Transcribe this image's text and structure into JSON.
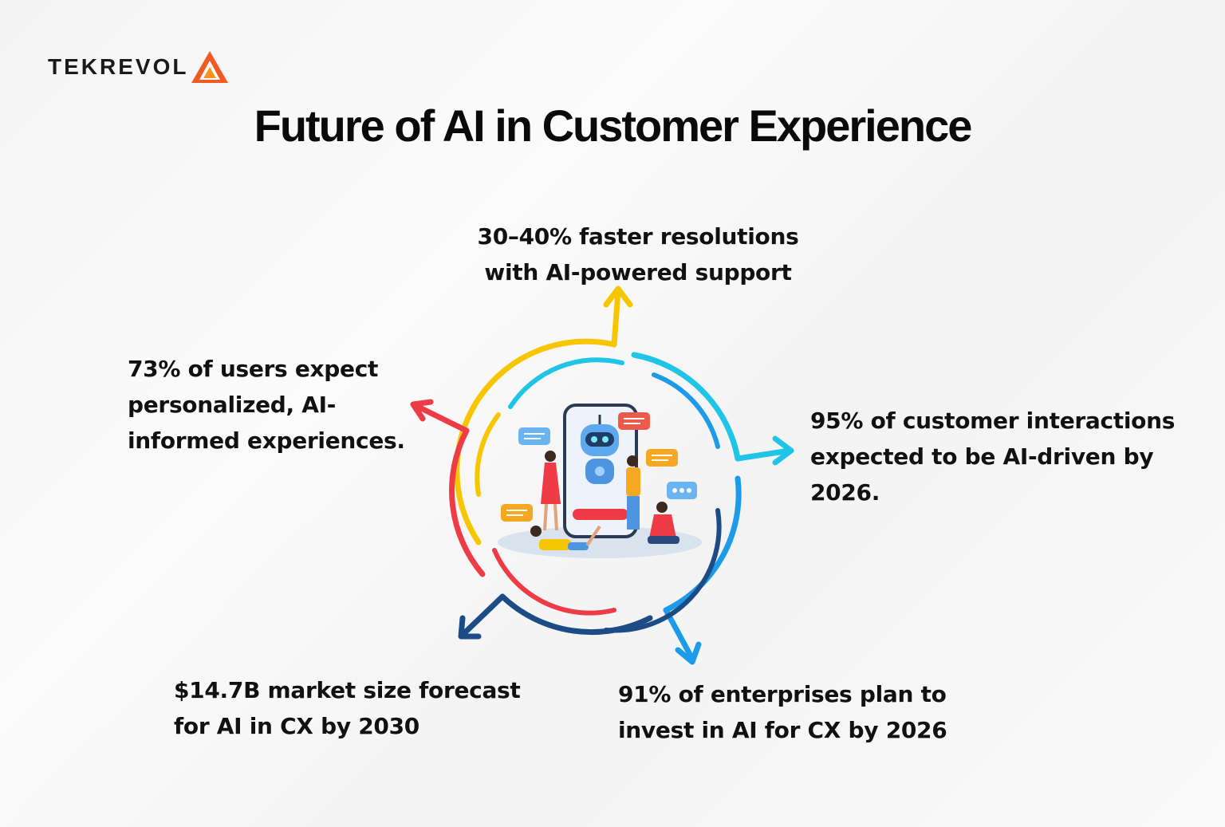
{
  "brand": {
    "name": "TEKREVOL",
    "logo_icon": "tekrevol-triangle-icon",
    "accent": "#f15a24"
  },
  "title": "Future of AI in Customer Experience",
  "stats": {
    "top": {
      "line1": "30–40% faster resolutions",
      "line2": "with AI-powered support",
      "color": "#f7c600"
    },
    "left": {
      "line1": "73% of users expect",
      "line2": "personalized, AI-",
      "line3": "informed experiences.",
      "color": "#ee3b45"
    },
    "right": {
      "line1": "95% of customer interactions",
      "line2": "expected to be AI-driven by",
      "line3": "2026.",
      "color": "#20c4e6"
    },
    "bottom_left": {
      "line1": "$14.7B market size forecast",
      "line2": "for AI in CX by 2030",
      "color": "#1c4c86"
    },
    "bottom_right": {
      "line1": "91% of enterprises plan to",
      "line2": "invest in AI for CX by 2026",
      "color": "#1e9be8"
    }
  },
  "illustration": {
    "name": "chatbot-smartphone-illustration",
    "icons": [
      "robot-icon",
      "chat-bubble-icon",
      "people-illustration"
    ]
  }
}
